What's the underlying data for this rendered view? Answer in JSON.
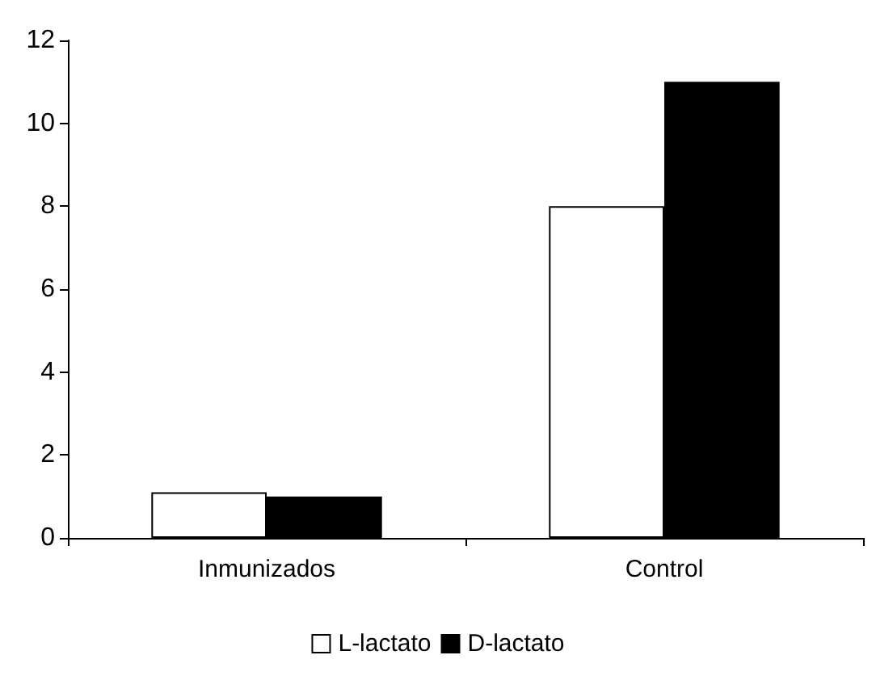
{
  "chart_data": {
    "type": "bar",
    "categories": [
      "Inmunizados",
      "Control"
    ],
    "series": [
      {
        "name": "L-lactato",
        "color": "#ffffff",
        "values": [
          1.1,
          8
        ]
      },
      {
        "name": "D-lactato",
        "color": "#000000",
        "values": [
          1.0,
          11
        ]
      }
    ],
    "ylim": [
      0,
      12
    ],
    "yticks": [
      0,
      2,
      4,
      6,
      8,
      10,
      12
    ],
    "grid": false,
    "legend": "bottom"
  }
}
